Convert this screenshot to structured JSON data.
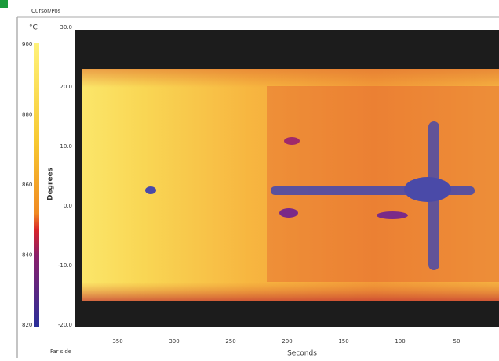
{
  "header": {
    "title": "Cursor/Pos"
  },
  "colorbar": {
    "unit": "°C",
    "labels": [
      "900",
      "880",
      "860",
      "840",
      "820"
    ]
  },
  "plot": {
    "y_label": "Degrees",
    "x_label": "Seconds",
    "y_ticks": [
      "30.0",
      "20.0",
      "10.0",
      "0.0",
      "-10.0",
      "-20.0"
    ],
    "x_ticks": [
      "350",
      "300",
      "250",
      "200",
      "150",
      "100",
      "50"
    ]
  },
  "footer": {
    "side": "Far side"
  }
}
